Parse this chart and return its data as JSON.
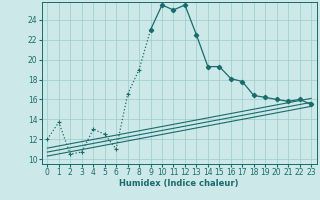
{
  "xlabel": "Humidex (Indice chaleur)",
  "background_color": "#cce8e8",
  "grid_color": "#99cccc",
  "line_color": "#1a6b6b",
  "xlim": [
    -0.5,
    23.5
  ],
  "ylim": [
    9.5,
    25.8
  ],
  "xticks": [
    0,
    1,
    2,
    3,
    4,
    5,
    6,
    7,
    8,
    9,
    10,
    11,
    12,
    13,
    14,
    15,
    16,
    17,
    18,
    19,
    20,
    21,
    22,
    23
  ],
  "yticks": [
    10,
    12,
    14,
    16,
    18,
    20,
    22,
    24
  ],
  "curve_x": [
    0,
    1,
    2,
    3,
    4,
    5,
    6,
    7,
    8,
    9,
    10,
    11,
    12,
    13,
    14,
    15,
    16,
    17,
    18,
    19,
    20,
    21,
    22,
    23
  ],
  "curve_y": [
    12.0,
    13.7,
    10.5,
    10.7,
    13.0,
    12.5,
    11.0,
    16.5,
    19.0,
    23.0,
    25.5,
    25.0,
    25.5,
    22.5,
    19.3,
    19.3,
    18.1,
    17.8,
    16.4,
    16.2,
    16.0,
    15.8,
    16.0,
    15.5
  ],
  "dotted_end_idx": 9,
  "solid_start_idx": 9,
  "ref_lines": [
    {
      "x": [
        0,
        23
      ],
      "y": [
        10.3,
        15.3
      ]
    },
    {
      "x": [
        0,
        23
      ],
      "y": [
        10.7,
        15.7
      ]
    },
    {
      "x": [
        0,
        23
      ],
      "y": [
        11.1,
        16.1
      ]
    }
  ]
}
